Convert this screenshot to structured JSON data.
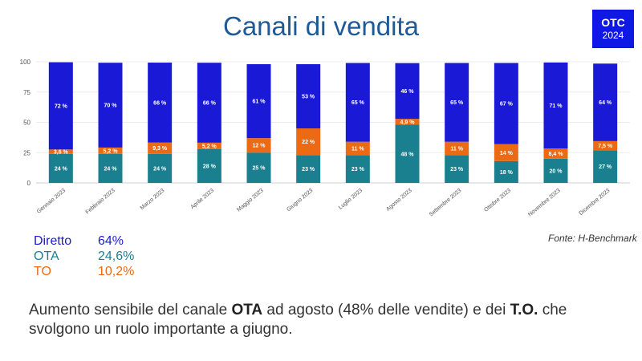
{
  "title": "Canali di vendita",
  "badge": {
    "line1": "OTC",
    "line2": "2024",
    "color": "#1018e6"
  },
  "source": "Fonte: H-Benchmark",
  "legend_summary": [
    {
      "label": "Diretto",
      "value": "64%",
      "color": "#1a1ad6"
    },
    {
      "label": "OTA",
      "value": "24,6%",
      "color": "#1a7f8e"
    },
    {
      "label": "TO",
      "value": "10,2%",
      "color": "#ec6a14"
    }
  ],
  "note": {
    "part1": "Aumento sensibile del canale ",
    "bold1": "OTA",
    "part2": " ad agosto (48% delle vendite) e dei ",
    "bold2": "T.O.",
    "part3": " che svolgono un ruolo importante a giugno."
  },
  "chart_data": {
    "type": "bar",
    "stacked": true,
    "categories": [
      "Gennaio 2023",
      "Febbraio 2023",
      "Marzo 2023",
      "Aprile 2023",
      "Maggio 2023",
      "Giugno 2023",
      "Luglio 2023",
      "Agosto 2023",
      "Settembre 2023",
      "Ottobre 2023",
      "Novembre 2023",
      "Dicembre 2023"
    ],
    "ylim": [
      0,
      100
    ],
    "yticks": [
      0,
      25,
      50,
      75,
      100
    ],
    "series": [
      {
        "color": "#1a7f8e",
        "values": [
          24,
          24,
          24,
          28,
          25,
          23,
          23,
          48,
          23,
          18,
          20,
          27
        ],
        "labels": [
          "24 %",
          "24 %",
          "24 %",
          "28 %",
          "25 %",
          "23 %",
          "23 %",
          "48 %",
          "23 %",
          "18 %",
          "20 %",
          "27 %"
        ]
      },
      {
        "color": "#ec6a14",
        "values": [
          3.6,
          5.2,
          9.3,
          5.2,
          12,
          22,
          11,
          4.9,
          11,
          14,
          8.4,
          7.5
        ],
        "labels": [
          "3,6 %",
          "5,2 %",
          "9,3 %",
          "5,2 %",
          "12 %",
          "22 %",
          "11 %",
          "4,9 %",
          "11 %",
          "14 %",
          "8,4 %",
          "7,5 %"
        ]
      },
      {
        "color": "#1a1ad6",
        "values": [
          72,
          70,
          66,
          66,
          61,
          53,
          65,
          46,
          65,
          67,
          71,
          64
        ],
        "labels": [
          "72 %",
          "70 %",
          "66 %",
          "66 %",
          "61 %",
          "53 %",
          "65 %",
          "46 %",
          "65 %",
          "67 %",
          "71 %",
          "64 %"
        ]
      }
    ],
    "grid": true,
    "legend": "none"
  }
}
